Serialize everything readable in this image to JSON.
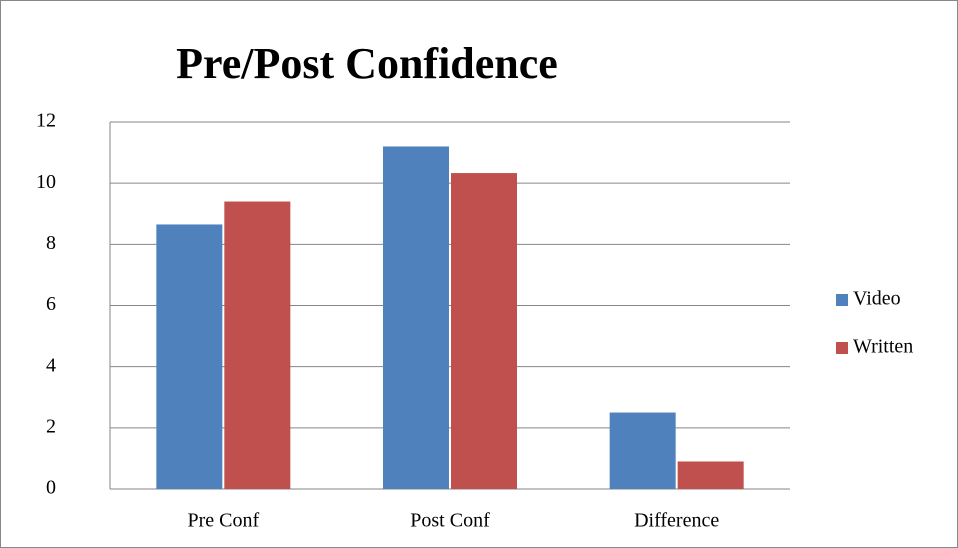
{
  "chart_data": {
    "type": "bar",
    "title": "Pre/Post Confidence",
    "categories": [
      "Pre Conf",
      "Post Conf",
      "Difference"
    ],
    "series": [
      {
        "name": "Video",
        "color": "#4f81bd",
        "values": [
          8.65,
          11.2,
          2.5
        ]
      },
      {
        "name": "Written",
        "color": "#c0504d",
        "values": [
          9.4,
          10.33,
          0.9
        ]
      }
    ],
    "ylim": [
      0,
      12
    ],
    "yticks": [
      0,
      2,
      4,
      6,
      8,
      10,
      12
    ],
    "grid": true,
    "legend": "right"
  }
}
